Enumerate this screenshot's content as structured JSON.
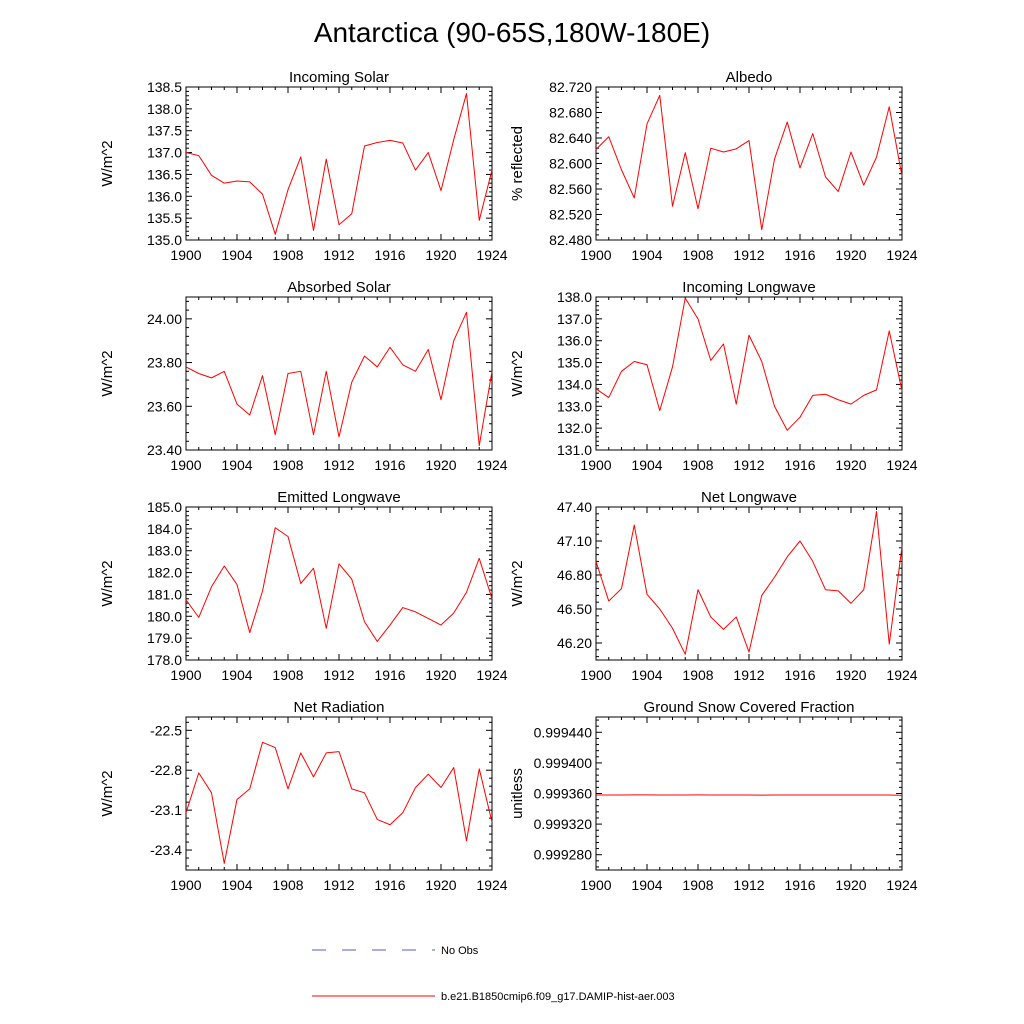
{
  "figure": {
    "title": "Antarctica (90-65S,180W-180E)"
  },
  "colors": {
    "model_line": "#ff0000",
    "obs_line": "#4d5cc6",
    "axis": "#000000"
  },
  "legend": {
    "obs_label": "No Obs",
    "model_label": "b.e21.B1850cmip6.f09_g17.DAMIP-hist-aer.003"
  },
  "chart_data": [
    {
      "type": "line",
      "title": "Incoming Solar",
      "ylabel": "W/m^2",
      "xlim": [
        1900,
        1924
      ],
      "ylim": [
        135.0,
        138.5
      ],
      "xticks": [
        1900,
        1904,
        1908,
        1912,
        1916,
        1920,
        1924
      ],
      "yticks": [
        135.0,
        135.5,
        136.0,
        136.5,
        137.0,
        137.5,
        138.0,
        138.5
      ],
      "ytick_labels": [
        "135.0",
        "135.5",
        "136.0",
        "136.5",
        "137.0",
        "137.5",
        "138.0",
        "138.5"
      ],
      "series": [
        {
          "x": [
            1900,
            1901,
            1902,
            1903,
            1904,
            1905,
            1906,
            1907,
            1908,
            1909,
            1910,
            1911,
            1912,
            1913,
            1914,
            1915,
            1916,
            1917,
            1918,
            1919,
            1920,
            1921,
            1922,
            1923,
            1924
          ],
          "values": [
            137.0,
            136.93,
            136.48,
            136.3,
            136.35,
            136.33,
            136.05,
            135.13,
            136.15,
            136.9,
            135.22,
            136.85,
            135.35,
            135.6,
            137.15,
            137.23,
            137.28,
            137.22,
            136.6,
            137.0,
            136.13,
            137.3,
            138.35,
            135.45,
            136.6
          ]
        }
      ]
    },
    {
      "type": "line",
      "title": "Albedo",
      "ylabel": "% reflected",
      "xlim": [
        1900,
        1924
      ],
      "ylim": [
        82.48,
        82.72
      ],
      "xticks": [
        1900,
        1904,
        1908,
        1912,
        1916,
        1920,
        1924
      ],
      "yticks": [
        82.48,
        82.52,
        82.56,
        82.6,
        82.64,
        82.68,
        82.72
      ],
      "ytick_labels": [
        "82.480",
        "82.520",
        "82.560",
        "82.600",
        "82.640",
        "82.680",
        "82.720"
      ],
      "series": [
        {
          "x": [
            1900,
            1901,
            1902,
            1903,
            1904,
            1905,
            1906,
            1907,
            1908,
            1909,
            1910,
            1911,
            1912,
            1913,
            1914,
            1915,
            1916,
            1917,
            1918,
            1919,
            1920,
            1921,
            1922,
            1923,
            1924
          ],
          "values": [
            82.622,
            82.642,
            82.59,
            82.546,
            82.662,
            82.707,
            82.533,
            82.617,
            82.529,
            82.624,
            82.618,
            82.623,
            82.636,
            82.496,
            82.607,
            82.665,
            82.593,
            82.647,
            82.579,
            82.556,
            82.618,
            82.566,
            82.61,
            82.689,
            82.58
          ]
        }
      ]
    },
    {
      "type": "line",
      "title": "Absorbed Solar",
      "ylabel": "W/m^2",
      "xlim": [
        1900,
        1924
      ],
      "ylim": [
        23.4,
        24.1
      ],
      "xticks": [
        1900,
        1904,
        1908,
        1912,
        1916,
        1920,
        1924
      ],
      "yticks": [
        23.4,
        23.6,
        23.8,
        24.0
      ],
      "ytick_labels": [
        "23.40",
        "23.60",
        "23.80",
        "24.00"
      ],
      "series": [
        {
          "x": [
            1900,
            1901,
            1902,
            1903,
            1904,
            1905,
            1906,
            1907,
            1908,
            1909,
            1910,
            1911,
            1912,
            1913,
            1914,
            1915,
            1916,
            1917,
            1918,
            1919,
            1920,
            1921,
            1922,
            1923,
            1924
          ],
          "values": [
            23.78,
            23.75,
            23.73,
            23.76,
            23.61,
            23.56,
            23.74,
            23.47,
            23.75,
            23.76,
            23.47,
            23.76,
            23.46,
            23.71,
            23.83,
            23.78,
            23.87,
            23.79,
            23.76,
            23.86,
            23.63,
            23.9,
            24.03,
            23.42,
            23.76
          ]
        }
      ]
    },
    {
      "type": "line",
      "title": "Incoming Longwave",
      "ylabel": "W/m^2",
      "xlim": [
        1900,
        1924
      ],
      "ylim": [
        131.0,
        138.0
      ],
      "xticks": [
        1900,
        1904,
        1908,
        1912,
        1916,
        1920,
        1924
      ],
      "yticks": [
        131.0,
        132.0,
        133.0,
        134.0,
        135.0,
        136.0,
        137.0,
        138.0
      ],
      "ytick_labels": [
        "131.0",
        "132.0",
        "133.0",
        "134.0",
        "135.0",
        "136.0",
        "137.0",
        "138.0"
      ],
      "series": [
        {
          "x": [
            1900,
            1901,
            1902,
            1903,
            1904,
            1905,
            1906,
            1907,
            1908,
            1909,
            1910,
            1911,
            1912,
            1913,
            1914,
            1915,
            1916,
            1917,
            1918,
            1919,
            1920,
            1921,
            1922,
            1923,
            1924
          ],
          "values": [
            133.8,
            133.4,
            134.6,
            135.05,
            134.9,
            132.8,
            134.8,
            137.95,
            137.0,
            135.1,
            135.85,
            133.1,
            136.25,
            135.05,
            133.0,
            131.9,
            132.5,
            133.5,
            133.55,
            133.3,
            133.1,
            133.5,
            133.75,
            136.45,
            133.7
          ]
        }
      ]
    },
    {
      "type": "line",
      "title": "Emitted Longwave",
      "ylabel": "W/m^2",
      "xlim": [
        1900,
        1924
      ],
      "ylim": [
        178.0,
        185.0
      ],
      "xticks": [
        1900,
        1904,
        1908,
        1912,
        1916,
        1920,
        1924
      ],
      "yticks": [
        178.0,
        179.0,
        180.0,
        181.0,
        182.0,
        183.0,
        184.0,
        185.0
      ],
      "ytick_labels": [
        "178.0",
        "179.0",
        "180.0",
        "181.0",
        "182.0",
        "183.0",
        "184.0",
        "185.0"
      ],
      "series": [
        {
          "x": [
            1900,
            1901,
            1902,
            1903,
            1904,
            1905,
            1906,
            1907,
            1908,
            1909,
            1910,
            1911,
            1912,
            1913,
            1914,
            1915,
            1916,
            1917,
            1918,
            1919,
            1920,
            1921,
            1922,
            1923,
            1924
          ],
          "values": [
            180.75,
            179.95,
            181.35,
            182.3,
            181.45,
            179.25,
            181.15,
            184.05,
            183.65,
            181.5,
            182.2,
            179.45,
            182.4,
            181.7,
            179.75,
            178.85,
            179.6,
            180.4,
            180.2,
            179.9,
            179.6,
            180.15,
            181.1,
            182.65,
            180.8
          ]
        }
      ]
    },
    {
      "type": "line",
      "title": "Net Longwave",
      "ylabel": "W/m^2",
      "xlim": [
        1900,
        1924
      ],
      "ylim": [
        46.05,
        47.4
      ],
      "xticks": [
        1900,
        1904,
        1908,
        1912,
        1916,
        1920,
        1924
      ],
      "yticks": [
        46.2,
        46.5,
        46.8,
        47.1,
        47.4
      ],
      "ytick_labels": [
        "46.20",
        "46.50",
        "46.80",
        "47.10",
        "47.40"
      ],
      "series": [
        {
          "x": [
            1900,
            1901,
            1902,
            1903,
            1904,
            1905,
            1906,
            1907,
            1908,
            1909,
            1910,
            1911,
            1912,
            1913,
            1914,
            1915,
            1916,
            1917,
            1918,
            1919,
            1920,
            1921,
            1922,
            1923,
            1924
          ],
          "values": [
            46.92,
            46.57,
            46.68,
            47.24,
            46.63,
            46.5,
            46.33,
            46.1,
            46.67,
            46.43,
            46.32,
            46.43,
            46.12,
            46.62,
            46.78,
            46.96,
            47.1,
            46.92,
            46.67,
            46.66,
            46.55,
            46.67,
            47.36,
            46.19,
            47.05
          ]
        }
      ]
    },
    {
      "type": "line",
      "title": "Net Radiation",
      "ylabel": "W/m^2",
      "xlim": [
        1900,
        1924
      ],
      "ylim": [
        -23.55,
        -22.4
      ],
      "xticks": [
        1900,
        1904,
        1908,
        1912,
        1916,
        1920,
        1924
      ],
      "yticks": [
        -23.4,
        -23.1,
        -22.8,
        -22.5
      ],
      "ytick_labels": [
        "-23.4",
        "-23.1",
        "-22.8",
        "-22.5"
      ],
      "series": [
        {
          "x": [
            1900,
            1901,
            1902,
            1903,
            1904,
            1905,
            1906,
            1907,
            1908,
            1909,
            1910,
            1911,
            1912,
            1913,
            1914,
            1915,
            1916,
            1917,
            1918,
            1919,
            1920,
            1921,
            1922,
            1923,
            1924
          ],
          "values": [
            -23.12,
            -22.82,
            -22.97,
            -23.5,
            -23.02,
            -22.94,
            -22.59,
            -22.63,
            -22.94,
            -22.67,
            -22.85,
            -22.67,
            -22.66,
            -22.94,
            -22.97,
            -23.17,
            -23.21,
            -23.12,
            -22.93,
            -22.83,
            -22.93,
            -22.78,
            -23.33,
            -22.79,
            -23.19
          ]
        }
      ]
    },
    {
      "type": "line",
      "title": "Ground Snow Covered Fraction",
      "ylabel": "unitless",
      "xlim": [
        1900,
        1924
      ],
      "ylim": [
        0.99926,
        0.99946
      ],
      "xticks": [
        1900,
        1904,
        1908,
        1912,
        1916,
        1920,
        1924
      ],
      "yticks": [
        0.99928,
        0.99932,
        0.99936,
        0.9994,
        0.99944
      ],
      "ytick_labels": [
        "0.999280",
        "0.999320",
        "0.999360",
        "0.999400",
        "0.999440"
      ],
      "series": [
        {
          "x": [
            1900,
            1901,
            1902,
            1903,
            1904,
            1905,
            1906,
            1907,
            1908,
            1909,
            1910,
            1911,
            1912,
            1913,
            1914,
            1915,
            1916,
            1917,
            1918,
            1919,
            1920,
            1921,
            1922,
            1923,
            1924
          ],
          "values": [
            0.999358,
            0.999358,
            0.999358,
            0.9993582,
            0.9993582,
            0.9993581,
            0.999358,
            0.9993581,
            0.9993582,
            0.9993581,
            0.999358,
            0.9993581,
            0.999358,
            0.9993579,
            0.999358,
            0.9993581,
            0.999358,
            0.999358,
            0.9993581,
            0.999358,
            0.999358,
            0.999358,
            0.999358,
            0.999358,
            0.9993575
          ]
        }
      ]
    }
  ]
}
